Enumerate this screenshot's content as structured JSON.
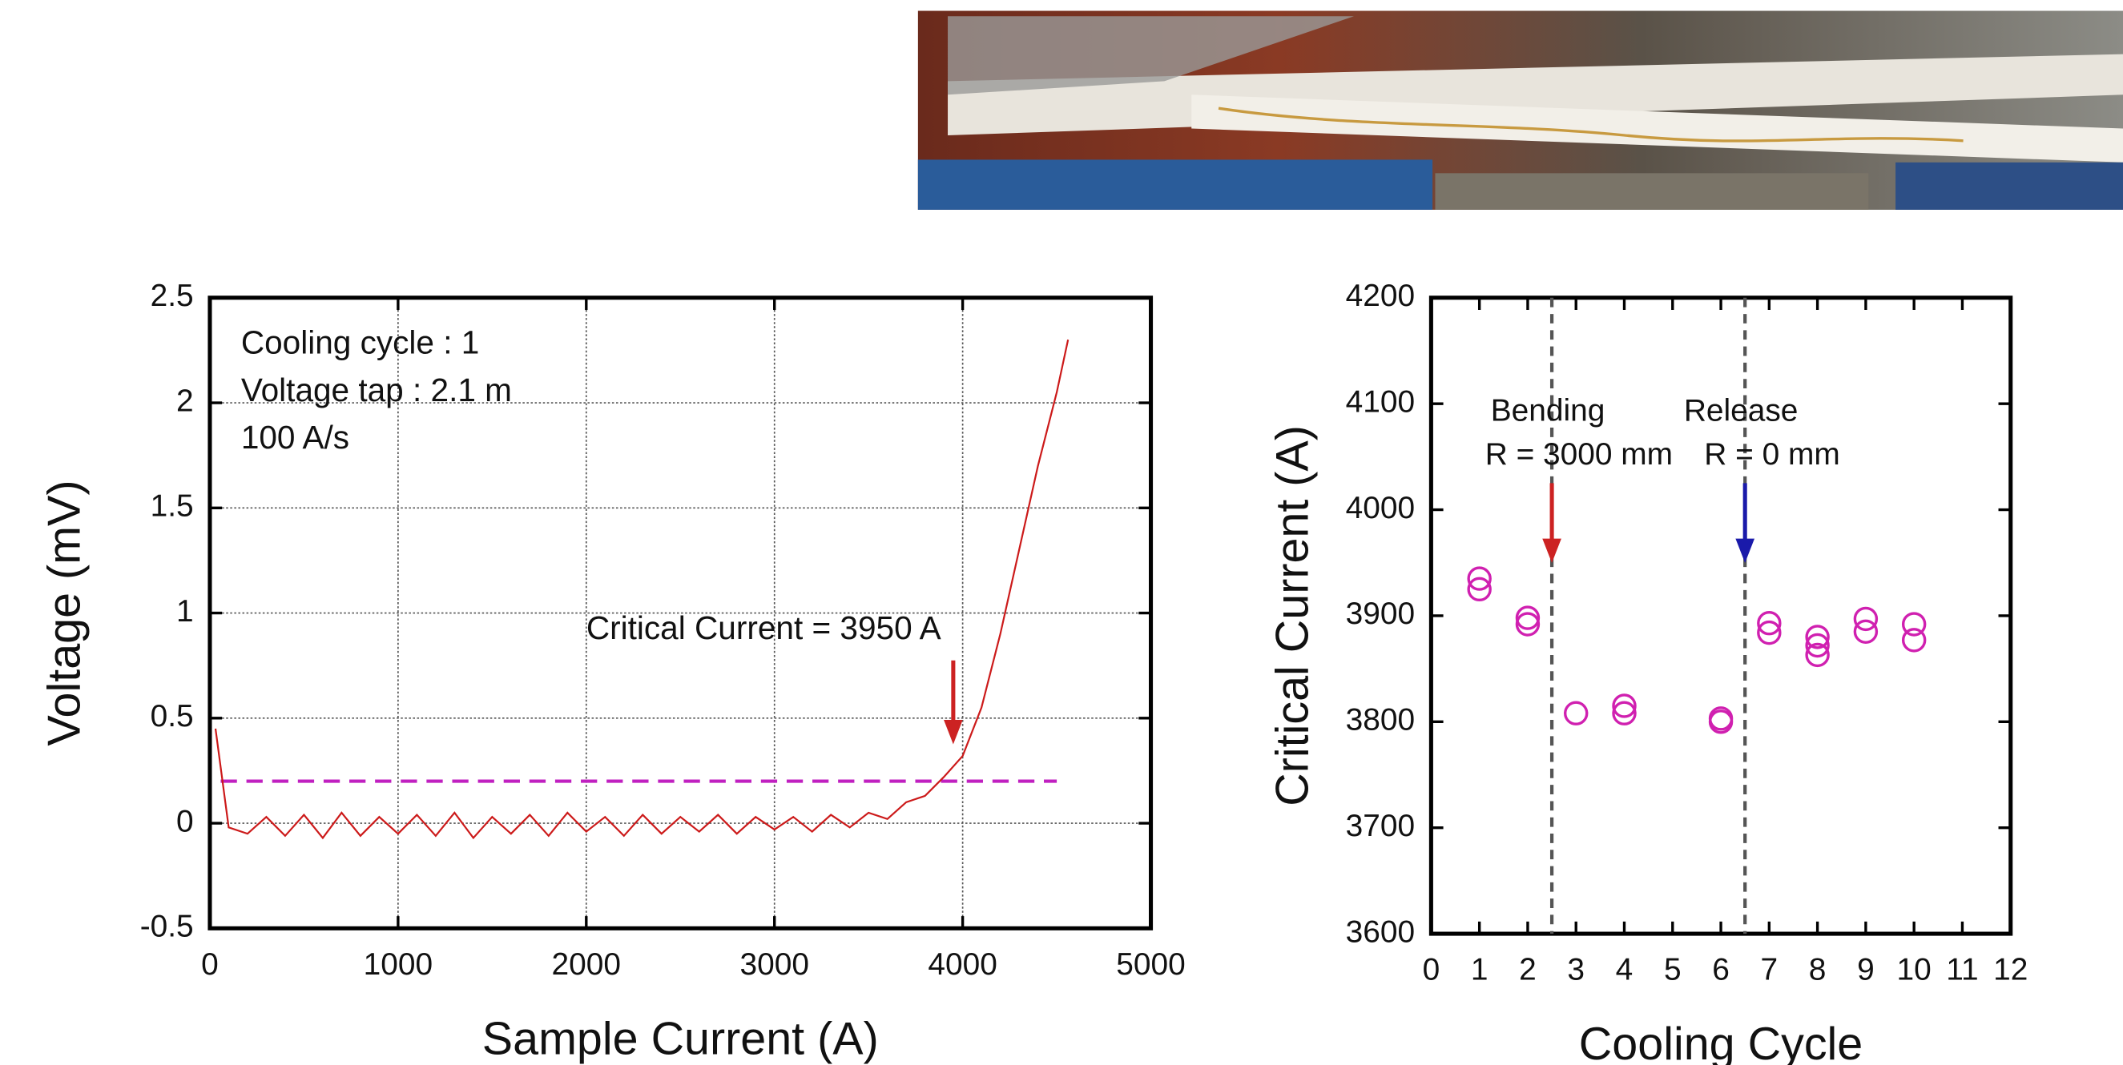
{
  "chart_data": [
    {
      "type": "line",
      "x_label": "Sample Current (A)",
      "y_label": "Voltage (mV)",
      "notes": [
        "Cooling cycle : 1",
        "Voltage tap : 2.1 m",
        "100 A/s"
      ],
      "annotation": {
        "text": "Critical Current = 3950 A",
        "x": 3950,
        "color": "#cc2222"
      },
      "x": [
        30,
        100,
        200,
        300,
        400,
        500,
        600,
        700,
        800,
        900,
        1000,
        1100,
        1200,
        1300,
        1400,
        1500,
        1600,
        1700,
        1800,
        1900,
        2000,
        2100,
        2200,
        2300,
        2400,
        2500,
        2600,
        2700,
        2800,
        2900,
        3000,
        3100,
        3200,
        3300,
        3400,
        3500,
        3600,
        3700,
        3800,
        3900,
        4000,
        4100,
        4200,
        4300,
        4400,
        4500,
        4560
      ],
      "values": [
        0.45,
        -0.02,
        -0.05,
        0.03,
        -0.06,
        0.04,
        -0.07,
        0.05,
        -0.06,
        0.03,
        -0.05,
        0.04,
        -0.06,
        0.05,
        -0.07,
        0.03,
        -0.05,
        0.04,
        -0.06,
        0.05,
        -0.04,
        0.03,
        -0.06,
        0.04,
        -0.05,
        0.03,
        -0.04,
        0.04,
        -0.05,
        0.03,
        -0.03,
        0.03,
        -0.04,
        0.04,
        -0.02,
        0.05,
        0.02,
        0.1,
        0.13,
        0.22,
        0.32,
        0.55,
        0.9,
        1.3,
        1.7,
        2.05,
        2.3
      ],
      "color": "#cc1a1a",
      "reference_line": {
        "value": 0.2,
        "color": "#c020c0"
      },
      "xlim": [
        0,
        5000
      ],
      "ylim": [
        -0.5,
        2.5
      ],
      "xticks": [
        0,
        1000,
        2000,
        3000,
        4000,
        5000
      ],
      "yticks": [
        -0.5,
        0,
        0.5,
        1,
        1.5,
        2,
        2.5
      ],
      "grid": true
    },
    {
      "type": "scatter",
      "x_label": "Cooling Cycle",
      "y_label": "Critical Current (A)",
      "x": [
        1,
        1,
        2,
        2,
        3,
        4,
        4,
        6,
        6,
        7,
        7,
        8,
        8,
        8,
        9,
        9,
        10,
        10
      ],
      "values": [
        3935,
        3925,
        3898,
        3892,
        3808,
        3815,
        3808,
        3803,
        3800,
        3893,
        3884,
        3880,
        3872,
        3863,
        3897,
        3885,
        3892,
        3877
      ],
      "color": "#d020b0",
      "vlines": [
        2.5,
        6.5
      ],
      "annotations": [
        {
          "lines": [
            "Bending",
            "R = 3000 mm"
          ],
          "x": 2.5,
          "color": "#cc2222"
        },
        {
          "lines": [
            "Release",
            "R = 0 mm"
          ],
          "x": 6.5,
          "color": "#1a1aaa"
        }
      ],
      "xlim": [
        0,
        12
      ],
      "ylim": [
        3600,
        4200
      ],
      "xticks": [
        0,
        1,
        2,
        3,
        4,
        5,
        6,
        7,
        8,
        9,
        10,
        11,
        12
      ],
      "yticks": [
        3600,
        3700,
        3800,
        3900,
        4000,
        4100,
        4200
      ],
      "grid": false
    }
  ]
}
